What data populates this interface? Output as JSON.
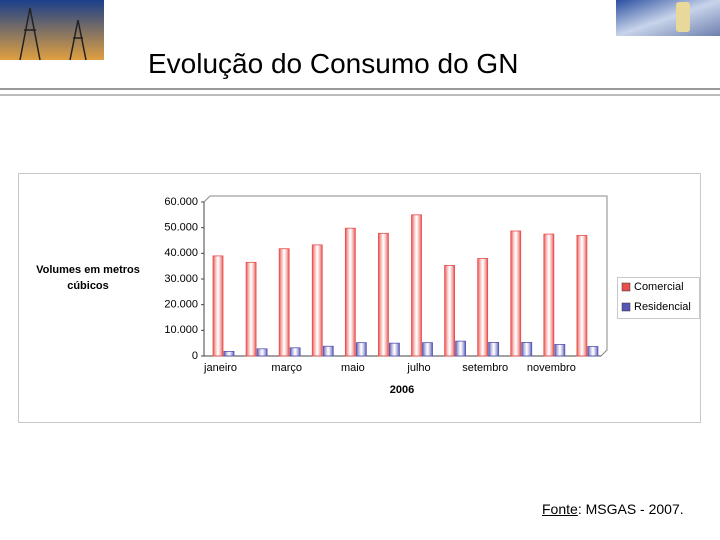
{
  "slide_title": "Evolução do Consumo do GN",
  "source_label": "Fonte",
  "source_text": ": MSGAS - 2007.",
  "chart_data": {
    "type": "bar",
    "y_label": "Volumes em metros cúbicos",
    "x_label": "2006",
    "categories": [
      "janeiro",
      null,
      "março",
      null,
      "maio",
      null,
      "julho",
      null,
      "setembro",
      null,
      "novembro",
      null
    ],
    "series": [
      {
        "name": "Comercial",
        "color": "#e8504c",
        "values": [
          39000,
          36500,
          41800,
          43300,
          49800,
          47800,
          55000,
          35300,
          38000,
          48700,
          47500,
          47000
        ]
      },
      {
        "name": "Residencial",
        "color": "#5656b4",
        "values": [
          1800,
          2800,
          3200,
          3800,
          5200,
          5000,
          5200,
          5800,
          5300,
          5300,
          4500,
          3700
        ]
      }
    ],
    "ylim": [
      0,
      60000
    ],
    "yticks": [
      0,
      {
        "value": 10000,
        "label": "10.000"
      },
      {
        "value": 20000,
        "label": "20.000"
      },
      {
        "value": 30000,
        "label": "30.000"
      },
      {
        "value": 40000,
        "label": "40.000"
      },
      {
        "value": 50000,
        "label": "50.000"
      },
      {
        "value": 60000,
        "label": "60.000"
      }
    ],
    "grid": false,
    "legend": "right"
  }
}
